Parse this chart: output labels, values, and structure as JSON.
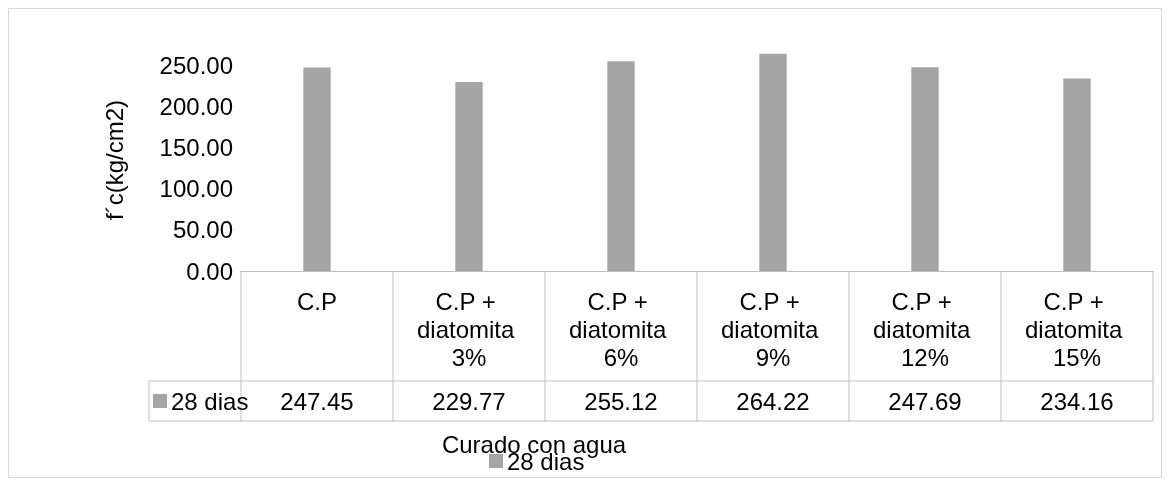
{
  "chart_data": {
    "type": "bar",
    "xlabel": "Curado con agua",
    "ylabel": "f´c(kg/cm2)",
    "categories": [
      "C.P",
      "C.P + diatomita 3%",
      "C.P + diatomita 6%",
      "C.P + diatomita 9%",
      "C.P + diatomita 12%",
      "C.P + diatomita 15%"
    ],
    "series": [
      {
        "name": "28 dias",
        "color": "#a5a5a5",
        "values": [
          247.45,
          229.77,
          255.12,
          264.22,
          247.69,
          234.16
        ]
      }
    ],
    "ylim": [
      0,
      270
    ],
    "yticks": [
      {
        "value": 0,
        "label": "0.00"
      },
      {
        "value": 50,
        "label": "50.00"
      },
      {
        "value": 100,
        "label": "100.00"
      },
      {
        "value": 150,
        "label": "150.00"
      },
      {
        "value": 200,
        "label": "200.00"
      },
      {
        "value": 250,
        "label": "250.00"
      }
    ],
    "data_labels": true,
    "legend": "bottom",
    "grid": false
  }
}
